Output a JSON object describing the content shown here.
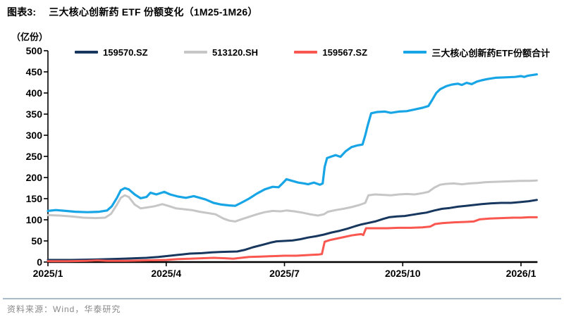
{
  "header": {
    "figure_label": "图表3:",
    "title": "三大核心创新药 ETF 份额变化（1M25-1M26）"
  },
  "footer": {
    "source": "资料来源：Wind，华泰研究"
  },
  "chart_data": {
    "type": "line",
    "title": "三大核心创新药 ETF 份额变化（1M25-1M26）",
    "ylabel": "（亿份）",
    "ylim": [
      0,
      500
    ],
    "ytick_step": 50,
    "yticks": [
      0,
      50,
      100,
      150,
      200,
      250,
      300,
      350,
      400,
      450,
      500
    ],
    "x_range_months": [
      0,
      12.4
    ],
    "xticks": [
      {
        "label": "2025/1",
        "month": 0
      },
      {
        "label": "2025/4",
        "month": 3
      },
      {
        "label": "2025/7",
        "month": 6
      },
      {
        "label": "2025/10",
        "month": 9
      },
      {
        "label": "2026/1",
        "month": 12
      }
    ],
    "grid": false,
    "legend_position": "top",
    "axis_color": "#000000",
    "series": [
      {
        "name": "159570.SZ",
        "color": "#17375e",
        "width": 3,
        "points": [
          [
            0,
            5
          ],
          [
            0.6,
            5
          ],
          [
            1.2,
            6
          ],
          [
            1.6,
            7
          ],
          [
            1.9,
            8
          ],
          [
            2.2,
            9
          ],
          [
            2.5,
            10
          ],
          [
            2.8,
            12
          ],
          [
            3.1,
            15
          ],
          [
            3.4,
            18
          ],
          [
            3.6,
            20
          ],
          [
            3.9,
            21
          ],
          [
            4.15,
            23
          ],
          [
            4.4,
            24
          ],
          [
            4.8,
            25
          ],
          [
            5.0,
            29
          ],
          [
            5.2,
            35
          ],
          [
            5.45,
            41
          ],
          [
            5.65,
            46
          ],
          [
            5.8,
            49
          ],
          [
            6.0,
            50
          ],
          [
            6.2,
            51
          ],
          [
            6.4,
            54
          ],
          [
            6.6,
            58
          ],
          [
            6.8,
            61
          ],
          [
            7.0,
            65
          ],
          [
            7.2,
            70
          ],
          [
            7.4,
            74
          ],
          [
            7.6,
            79
          ],
          [
            7.8,
            85
          ],
          [
            7.95,
            89
          ],
          [
            8.1,
            92
          ],
          [
            8.3,
            96
          ],
          [
            8.5,
            102
          ],
          [
            8.65,
            106
          ],
          [
            8.85,
            108
          ],
          [
            9.05,
            109
          ],
          [
            9.25,
            112
          ],
          [
            9.45,
            115
          ],
          [
            9.6,
            117
          ],
          [
            9.8,
            122
          ],
          [
            10.0,
            126
          ],
          [
            10.2,
            128
          ],
          [
            10.4,
            131
          ],
          [
            10.6,
            133
          ],
          [
            10.8,
            135
          ],
          [
            11.0,
            137
          ],
          [
            11.25,
            139
          ],
          [
            11.5,
            140
          ],
          [
            11.75,
            140
          ],
          [
            12.0,
            142
          ],
          [
            12.2,
            144
          ],
          [
            12.4,
            147
          ]
        ]
      },
      {
        "name": "513120.SH",
        "color": "#c6c6c6",
        "width": 3,
        "points": [
          [
            0,
            111
          ],
          [
            0.3,
            110
          ],
          [
            0.6,
            108
          ],
          [
            0.9,
            105
          ],
          [
            1.2,
            104
          ],
          [
            1.45,
            105
          ],
          [
            1.6,
            114
          ],
          [
            1.75,
            136
          ],
          [
            1.85,
            152
          ],
          [
            1.95,
            158
          ],
          [
            2.05,
            154
          ],
          [
            2.2,
            136
          ],
          [
            2.35,
            127
          ],
          [
            2.5,
            129
          ],
          [
            2.7,
            132
          ],
          [
            2.9,
            137
          ],
          [
            3.05,
            133
          ],
          [
            3.25,
            127
          ],
          [
            3.45,
            125
          ],
          [
            3.65,
            123
          ],
          [
            3.85,
            119
          ],
          [
            4.05,
            116
          ],
          [
            4.25,
            113
          ],
          [
            4.45,
            103
          ],
          [
            4.6,
            98
          ],
          [
            4.75,
            96
          ],
          [
            4.9,
            101
          ],
          [
            5.1,
            107
          ],
          [
            5.3,
            113
          ],
          [
            5.5,
            118
          ],
          [
            5.7,
            121
          ],
          [
            5.9,
            120
          ],
          [
            6.05,
            122
          ],
          [
            6.25,
            120
          ],
          [
            6.45,
            117
          ],
          [
            6.65,
            113
          ],
          [
            6.85,
            110
          ],
          [
            7.0,
            113
          ],
          [
            7.1,
            119
          ],
          [
            7.3,
            123
          ],
          [
            7.5,
            126
          ],
          [
            7.7,
            130
          ],
          [
            7.9,
            135
          ],
          [
            8.05,
            140
          ],
          [
            8.13,
            158
          ],
          [
            8.3,
            160
          ],
          [
            8.5,
            159
          ],
          [
            8.7,
            158
          ],
          [
            8.9,
            160
          ],
          [
            9.1,
            161
          ],
          [
            9.3,
            160
          ],
          [
            9.5,
            163
          ],
          [
            9.65,
            166
          ],
          [
            9.8,
            176
          ],
          [
            9.95,
            183
          ],
          [
            10.1,
            185
          ],
          [
            10.3,
            186
          ],
          [
            10.5,
            184
          ],
          [
            10.7,
            186
          ],
          [
            10.9,
            187
          ],
          [
            11.1,
            189
          ],
          [
            11.4,
            190
          ],
          [
            11.7,
            191
          ],
          [
            12.0,
            192
          ],
          [
            12.2,
            192
          ],
          [
            12.4,
            193
          ]
        ]
      },
      {
        "name": "159567.SZ",
        "color": "#f9574f",
        "width": 3,
        "points": [
          [
            0,
            2
          ],
          [
            0.5,
            2
          ],
          [
            1.0,
            3
          ],
          [
            1.25,
            4
          ],
          [
            1.5,
            3
          ],
          [
            2.0,
            3
          ],
          [
            2.5,
            4
          ],
          [
            3.0,
            5
          ],
          [
            3.3,
            7
          ],
          [
            3.6,
            8
          ],
          [
            3.9,
            9
          ],
          [
            4.2,
            10
          ],
          [
            4.5,
            9
          ],
          [
            4.7,
            8
          ],
          [
            4.9,
            10
          ],
          [
            5.1,
            12
          ],
          [
            5.4,
            13
          ],
          [
            5.7,
            14
          ],
          [
            6.0,
            15
          ],
          [
            6.3,
            15
          ],
          [
            6.5,
            16
          ],
          [
            6.7,
            17
          ],
          [
            6.88,
            18
          ],
          [
            6.95,
            19
          ],
          [
            7.02,
            48
          ],
          [
            7.15,
            52
          ],
          [
            7.3,
            55
          ],
          [
            7.5,
            59
          ],
          [
            7.7,
            63
          ],
          [
            7.85,
            65
          ],
          [
            7.95,
            66
          ],
          [
            8.0,
            64
          ],
          [
            8.07,
            80
          ],
          [
            8.3,
            80
          ],
          [
            8.6,
            80
          ],
          [
            8.9,
            81
          ],
          [
            9.2,
            81
          ],
          [
            9.5,
            82
          ],
          [
            9.7,
            84
          ],
          [
            9.82,
            90
          ],
          [
            10.0,
            92
          ],
          [
            10.3,
            94
          ],
          [
            10.6,
            95
          ],
          [
            10.8,
            96
          ],
          [
            10.95,
            101
          ],
          [
            11.2,
            103
          ],
          [
            11.5,
            104
          ],
          [
            11.8,
            105
          ],
          [
            12.0,
            105
          ],
          [
            12.2,
            106
          ],
          [
            12.4,
            106
          ]
        ]
      },
      {
        "name": "三大核心创新药ETF份额合计",
        "color": "#18a5e6",
        "width": 3.2,
        "points": [
          [
            0,
            121
          ],
          [
            0.2,
            123
          ],
          [
            0.45,
            121
          ],
          [
            0.7,
            119
          ],
          [
            1.0,
            118
          ],
          [
            1.3,
            119
          ],
          [
            1.5,
            122
          ],
          [
            1.62,
            132
          ],
          [
            1.75,
            152
          ],
          [
            1.85,
            170
          ],
          [
            1.95,
            175
          ],
          [
            2.05,
            172
          ],
          [
            2.2,
            160
          ],
          [
            2.35,
            151
          ],
          [
            2.5,
            154
          ],
          [
            2.6,
            164
          ],
          [
            2.75,
            160
          ],
          [
            2.95,
            166
          ],
          [
            3.1,
            160
          ],
          [
            3.3,
            155
          ],
          [
            3.5,
            152
          ],
          [
            3.7,
            156
          ],
          [
            3.85,
            152
          ],
          [
            4.0,
            148
          ],
          [
            4.2,
            140
          ],
          [
            4.4,
            136
          ],
          [
            4.6,
            134
          ],
          [
            4.75,
            133
          ],
          [
            4.9,
            140
          ],
          [
            5.1,
            150
          ],
          [
            5.3,
            162
          ],
          [
            5.5,
            172
          ],
          [
            5.7,
            178
          ],
          [
            5.85,
            177
          ],
          [
            5.95,
            186
          ],
          [
            6.05,
            196
          ],
          [
            6.2,
            192
          ],
          [
            6.35,
            188
          ],
          [
            6.5,
            186
          ],
          [
            6.6,
            184
          ],
          [
            6.75,
            188
          ],
          [
            6.9,
            183
          ],
          [
            6.97,
            186
          ],
          [
            7.02,
            225
          ],
          [
            7.08,
            246
          ],
          [
            7.2,
            250
          ],
          [
            7.3,
            253
          ],
          [
            7.42,
            249
          ],
          [
            7.55,
            262
          ],
          [
            7.7,
            272
          ],
          [
            7.85,
            276
          ],
          [
            7.98,
            278
          ],
          [
            8.05,
            300
          ],
          [
            8.12,
            326
          ],
          [
            8.2,
            352
          ],
          [
            8.35,
            355
          ],
          [
            8.55,
            356
          ],
          [
            8.7,
            353
          ],
          [
            8.9,
            356
          ],
          [
            9.1,
            357
          ],
          [
            9.3,
            361
          ],
          [
            9.5,
            365
          ],
          [
            9.65,
            369
          ],
          [
            9.75,
            384
          ],
          [
            9.85,
            400
          ],
          [
            9.95,
            409
          ],
          [
            10.1,
            416
          ],
          [
            10.25,
            420
          ],
          [
            10.4,
            422
          ],
          [
            10.5,
            419
          ],
          [
            10.62,
            424
          ],
          [
            10.75,
            421
          ],
          [
            10.88,
            427
          ],
          [
            11.0,
            430
          ],
          [
            11.15,
            433
          ],
          [
            11.35,
            436
          ],
          [
            11.6,
            437
          ],
          [
            11.85,
            438
          ],
          [
            12.0,
            440
          ],
          [
            12.08,
            438
          ],
          [
            12.18,
            441
          ],
          [
            12.4,
            444
          ]
        ]
      }
    ]
  }
}
